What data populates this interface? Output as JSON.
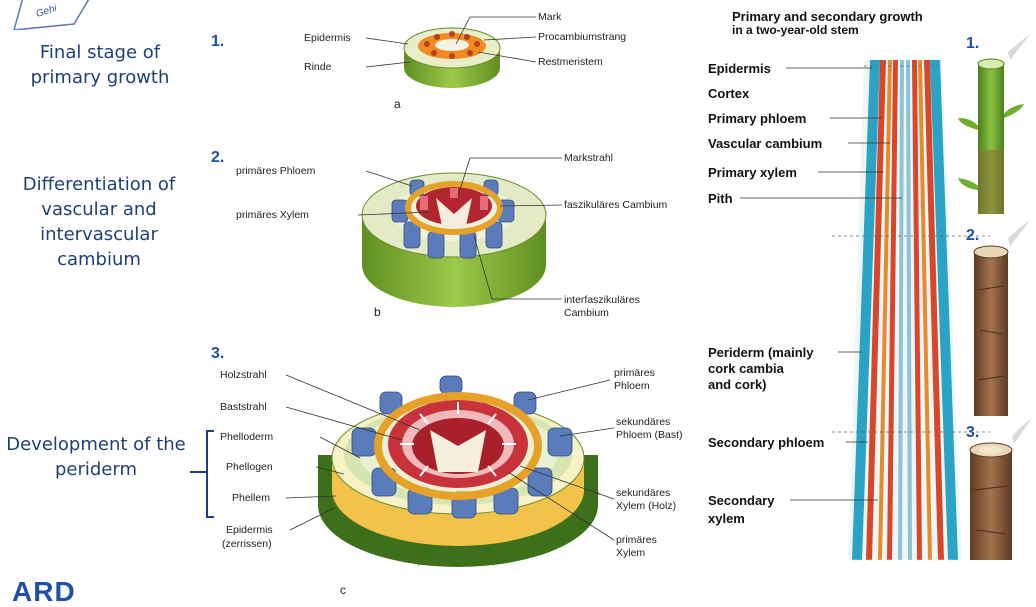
{
  "left_stages": [
    {
      "text": "Final stage of primary growth"
    },
    {
      "text": "Differentiation of vascular and intervascular cambium"
    },
    {
      "text": "Development of the periderm"
    }
  ],
  "corner_text": "Gehi",
  "bottom_logo_text": "ARD",
  "diagram_a": {
    "number": "1.",
    "letter": "a",
    "labels": [
      "Epidermis",
      "Rinde",
      "Mark",
      "Procambiumstrang",
      "Restmeristem"
    ]
  },
  "diagram_b": {
    "number": "2.",
    "letter": "b",
    "labels": [
      "primäres Phloem",
      "primäres Xylem",
      "Markstrahl",
      "faszikuläres Cambium",
      "interfaszikuläres",
      "Cambium"
    ]
  },
  "diagram_c": {
    "number": "3.",
    "letter": "c",
    "labels_left": [
      "Holzstrahl",
      "Baststrahl",
      "Phelloderm",
      "Phellogen",
      "Phellem",
      "Epidermis",
      "(zerrissen)"
    ],
    "labels_right": [
      "primäres",
      "Phloem",
      "sekundäres",
      "Phloem (Bast)",
      "sekundäres",
      "Xylem (Holz)",
      "primäres",
      "Xylem"
    ]
  },
  "stem": {
    "title_line1": "Primary and secondary growth",
    "title_line2": "in a two-year-old stem",
    "labels": [
      "Epidermis",
      "Cortex",
      "Primary phloem",
      "Vascular cambium",
      "Primary xylem",
      "Pith"
    ],
    "labels_lower": [
      "Periderm (mainly",
      "cork cambia",
      "and cork)",
      "Secondary phloem",
      "Secondary",
      "xylem"
    ],
    "markers": [
      "1.",
      "2.",
      "3."
    ]
  },
  "colors": {
    "stage_text": "#1f3f7a",
    "number": "#1f4fa8",
    "cortex_green": "#8ab83a",
    "phloem_blue": "#4f6fae",
    "xylem_red": "#b3262f",
    "cambium_orange": "#e7a02a",
    "stem_red": "#d9472b",
    "stem_teal": "#2aa3c4",
    "bark_brown": "#8b5e3c"
  }
}
